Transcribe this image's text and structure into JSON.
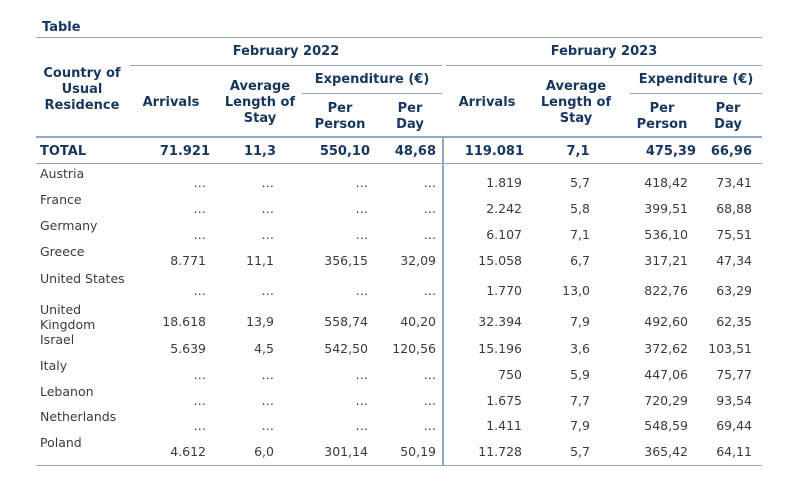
{
  "caption": "Table",
  "headers": {
    "country": "Country of Usual Residence",
    "period_2022": "February 2022",
    "period_2023": "February 2023",
    "arrivals": "Arrivals",
    "avg_stay": "Average Length of Stay",
    "expenditure": "Expenditure (€)",
    "per_person": "Per Person",
    "per_day": "Per Day"
  },
  "total": {
    "label": "TOTAL",
    "values": [
      "71.921",
      "11,3",
      "550,10",
      "48,68",
      "119.081",
      "7,1",
      "475,39",
      "66,96"
    ]
  },
  "rows": [
    {
      "country": "Austria",
      "values": [
        "…",
        "…",
        "…",
        "…",
        "1.819",
        "5,7",
        "418,42",
        "73,41"
      ]
    },
    {
      "country": "France",
      "values": [
        "…",
        "…",
        "…",
        "…",
        "2.242",
        "5,8",
        "399,51",
        "68,88"
      ]
    },
    {
      "country": "Germany",
      "values": [
        "…",
        "…",
        "…",
        "…",
        "6.107",
        "7,1",
        "536,10",
        "75,51"
      ]
    },
    {
      "country": "Greece",
      "values": [
        "8.771",
        "11,1",
        "356,15",
        "32,09",
        "15.058",
        "6,7",
        "317,21",
        "47,34"
      ]
    },
    {
      "country": "United States",
      "values": [
        "…",
        "…",
        "…",
        "…",
        "1.770",
        "13,0",
        "822,76",
        "63,29"
      ]
    },
    {
      "country": "United Kingdom",
      "values": [
        "18.618",
        "13,9",
        "558,74",
        "40,20",
        "32.394",
        "7,9",
        "492,60",
        "62,35"
      ]
    },
    {
      "country": "Israel",
      "values": [
        "5.639",
        "4,5",
        "542,50",
        "120,56",
        "15.196",
        "3,6",
        "372,62",
        "103,51"
      ]
    },
    {
      "country": "Italy",
      "values": [
        "…",
        "…",
        "…",
        "…",
        "750",
        "5,9",
        "447,06",
        "75,77"
      ]
    },
    {
      "country": "Lebanon",
      "values": [
        "…",
        "…",
        "…",
        "…",
        "1.675",
        "7,7",
        "720,29",
        "93,54"
      ]
    },
    {
      "country": "Netherlands",
      "values": [
        "…",
        "…",
        "…",
        "…",
        "1.411",
        "7,9",
        "548,59",
        "69,44"
      ]
    },
    {
      "country": "Poland",
      "values": [
        "4.612",
        "6,0",
        "301,14",
        "50,19",
        "11.728",
        "5,7",
        "365,42",
        "64,11"
      ]
    }
  ]
}
